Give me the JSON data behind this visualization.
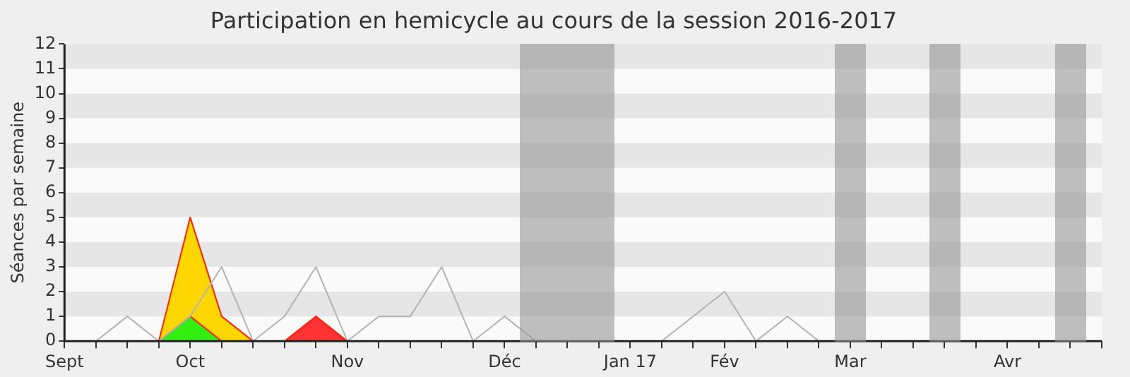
{
  "chart_data": {
    "type": "area",
    "title": "Participation en hemicycle au cours de la session 2016-2017",
    "ylabel": "Séances par semaine",
    "categories": [
      "Sept",
      null,
      null,
      null,
      "Oct",
      null,
      null,
      null,
      null,
      "Nov",
      null,
      null,
      null,
      null,
      "Déc",
      null,
      null,
      null,
      "Jan 17",
      null,
      null,
      "Fév",
      null,
      null,
      null,
      "Mar",
      null,
      null,
      null,
      null,
      "Avr",
      null,
      null,
      null
    ],
    "series": [
      {
        "color": "#ffd700",
        "values": [
          null,
          null,
          null,
          0,
          5,
          1,
          0,
          null,
          null,
          null,
          null,
          null,
          null,
          null,
          null,
          null,
          null,
          null,
          null,
          null,
          null,
          null,
          null,
          null,
          null,
          null,
          null,
          null,
          null,
          null,
          null,
          null,
          null,
          null
        ]
      },
      {
        "color": "#33ee11",
        "values": [
          null,
          null,
          null,
          0,
          1,
          0,
          null,
          null,
          null,
          null,
          null,
          null,
          null,
          null,
          null,
          null,
          null,
          null,
          null,
          null,
          null,
          null,
          null,
          null,
          null,
          null,
          null,
          null,
          null,
          null,
          null,
          null,
          null,
          null
        ]
      },
      {
        "color": "#ff3333",
        "values": [
          null,
          null,
          null,
          null,
          null,
          null,
          null,
          0,
          1,
          0,
          null,
          null,
          null,
          null,
          null,
          null,
          null,
          null,
          null,
          null,
          null,
          null,
          null,
          null,
          null,
          null,
          null,
          null,
          null,
          null,
          null,
          null,
          null,
          null
        ]
      },
      {
        "type": "line",
        "color": "#b4b4b4",
        "values": [
          null,
          0,
          1,
          0,
          1,
          3,
          0,
          1,
          3,
          0,
          1,
          1,
          3,
          0,
          1,
          0,
          null,
          null,
          null,
          0,
          1,
          2,
          0,
          1,
          0,
          null,
          null,
          null,
          null,
          null,
          null,
          null,
          null,
          null
        ]
      }
    ],
    "ylim": [
      0,
      12
    ],
    "yticks": [
      0,
      1,
      2,
      3,
      4,
      5,
      6,
      7,
      8,
      9,
      10,
      11,
      12
    ]
  }
}
